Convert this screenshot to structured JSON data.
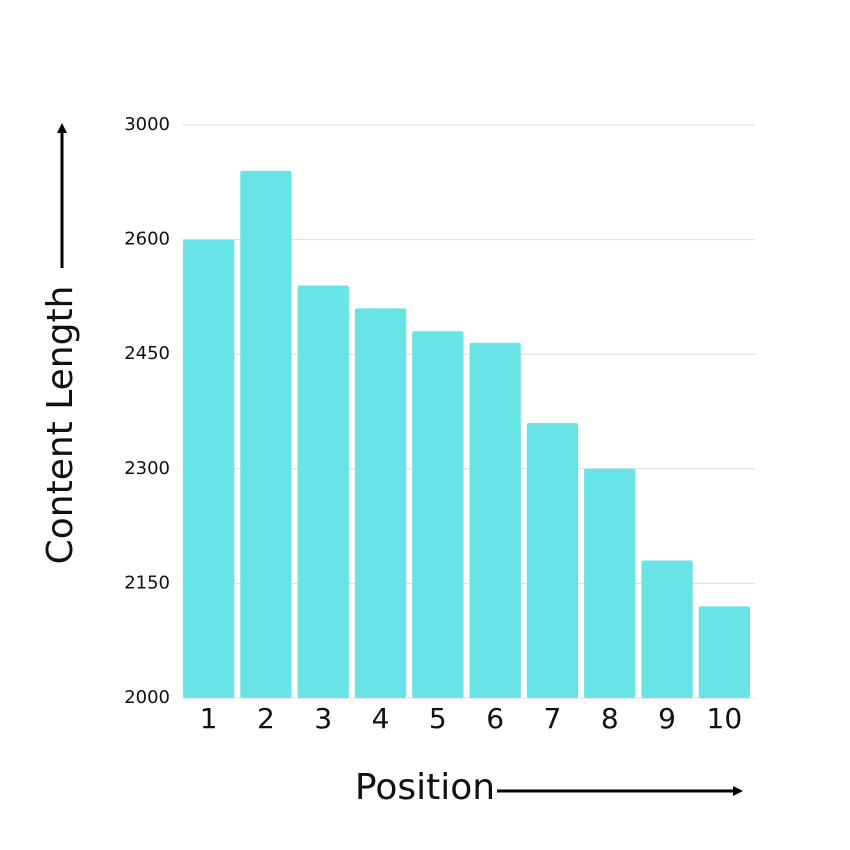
{
  "chart_data": {
    "type": "bar",
    "x_label": "Position",
    "y_label": "Content Length",
    "categories": [
      "1",
      "2",
      "3",
      "4",
      "5",
      "6",
      "7",
      "8",
      "9",
      "10"
    ],
    "values": [
      2600,
      2840,
      2540,
      2510,
      2480,
      2465,
      2360,
      2300,
      2180,
      2120
    ],
    "color": "#68e3e6",
    "ylim": [
      2000,
      3000
    ],
    "yticks": [
      2000,
      2150,
      2300,
      2450,
      2600,
      3000
    ],
    "grid": true
  }
}
